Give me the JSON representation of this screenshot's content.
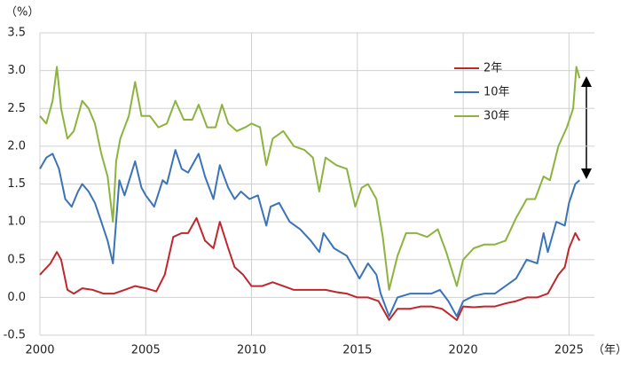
{
  "chart_data": {
    "type": "line",
    "y_unit": "（%）",
    "x_unit": "（年）",
    "xlim": [
      2000,
      2026.2
    ],
    "xticks": [
      2000,
      2005,
      2010,
      2015,
      2020,
      2025
    ],
    "ylim": [
      -0.5,
      3.5
    ],
    "yticks": [
      {
        "value": 3.5,
        "label": "3.5"
      },
      {
        "value": 3,
        "label": "3.0"
      },
      2.5,
      {
        "value": 2,
        "label": "2.0"
      },
      1.5,
      {
        "value": 1,
        "label": "1.0"
      },
      0.5,
      {
        "value": 0,
        "label": "0.0"
      },
      -0.5
    ],
    "grid": true,
    "series": [
      {
        "name": "2年",
        "color": "#c0272d",
        "x": [
          2000.0,
          2000.5,
          2000.8,
          2001.0,
          2001.3,
          2001.6,
          2002.0,
          2002.5,
          2003.0,
          2003.5,
          2004.0,
          2004.5,
          2005.0,
          2005.5,
          2005.9,
          2006.3,
          2006.7,
          2007.0,
          2007.4,
          2007.8,
          2008.2,
          2008.5,
          2008.9,
          2009.2,
          2009.6,
          2010.0,
          2010.5,
          2011.0,
          2011.5,
          2012.0,
          2012.5,
          2013.0,
          2013.5,
          2014.0,
          2014.5,
          2015.0,
          2015.5,
          2016.0,
          2016.5,
          2016.9,
          2017.5,
          2018.0,
          2018.5,
          2019.0,
          2019.7,
          2020.0,
          2020.5,
          2021.0,
          2021.5,
          2022.0,
          2022.5,
          2023.0,
          2023.5,
          2024.0,
          2024.5,
          2024.8,
          2025.0,
          2025.3,
          2025.5
        ],
        "values": [
          0.3,
          0.45,
          0.6,
          0.5,
          0.1,
          0.05,
          0.12,
          0.1,
          0.05,
          0.05,
          0.1,
          0.15,
          0.12,
          0.08,
          0.3,
          0.8,
          0.85,
          0.85,
          1.05,
          0.75,
          0.65,
          1.0,
          0.65,
          0.4,
          0.3,
          0.15,
          0.15,
          0.2,
          0.15,
          0.1,
          0.1,
          0.1,
          0.1,
          0.07,
          0.05,
          0.0,
          0.0,
          -0.05,
          -0.3,
          -0.15,
          -0.15,
          -0.12,
          -0.12,
          -0.15,
          -0.3,
          -0.12,
          -0.13,
          -0.12,
          -0.12,
          -0.08,
          -0.05,
          0.0,
          0.0,
          0.05,
          0.3,
          0.4,
          0.65,
          0.85,
          0.75
        ]
      },
      {
        "name": "10年",
        "color": "#3b73b9",
        "x": [
          2000.0,
          2000.3,
          2000.6,
          2000.9,
          2001.2,
          2001.5,
          2001.8,
          2002.0,
          2002.3,
          2002.6,
          2002.9,
          2003.2,
          2003.45,
          2003.6,
          2003.75,
          2004.0,
          2004.5,
          2004.8,
          2005.0,
          2005.4,
          2005.8,
          2006.0,
          2006.4,
          2006.7,
          2007.0,
          2007.5,
          2007.8,
          2008.2,
          2008.5,
          2008.9,
          2009.2,
          2009.5,
          2009.9,
          2010.3,
          2010.7,
          2010.9,
          2011.3,
          2011.8,
          2012.3,
          2012.8,
          2013.2,
          2013.4,
          2013.9,
          2014.5,
          2014.9,
          2015.1,
          2015.5,
          2015.9,
          2016.1,
          2016.5,
          2016.9,
          2017.5,
          2018.0,
          2018.5,
          2018.9,
          2019.3,
          2019.7,
          2020.0,
          2020.5,
          2021.0,
          2021.5,
          2022.0,
          2022.5,
          2023.0,
          2023.5,
          2023.8,
          2024.0,
          2024.4,
          2024.8,
          2025.0,
          2025.3,
          2025.5
        ],
        "values": [
          1.7,
          1.85,
          1.9,
          1.7,
          1.3,
          1.2,
          1.4,
          1.5,
          1.4,
          1.25,
          1.0,
          0.75,
          0.45,
          1.0,
          1.55,
          1.35,
          1.8,
          1.45,
          1.35,
          1.2,
          1.55,
          1.5,
          1.95,
          1.7,
          1.65,
          1.9,
          1.6,
          1.3,
          1.75,
          1.45,
          1.3,
          1.4,
          1.3,
          1.35,
          0.95,
          1.2,
          1.25,
          1.0,
          0.9,
          0.75,
          0.6,
          0.85,
          0.65,
          0.55,
          0.35,
          0.25,
          0.45,
          0.3,
          0.05,
          -0.25,
          0.0,
          0.05,
          0.05,
          0.05,
          0.1,
          -0.05,
          -0.25,
          -0.05,
          0.02,
          0.05,
          0.05,
          0.15,
          0.25,
          0.5,
          0.45,
          0.85,
          0.6,
          1.0,
          0.95,
          1.25,
          1.5,
          1.55
        ]
      },
      {
        "name": "30年",
        "color": "#8db33f",
        "x": [
          2000.0,
          2000.3,
          2000.6,
          2000.8,
          2001.0,
          2001.3,
          2001.6,
          2002.0,
          2002.3,
          2002.6,
          2002.9,
          2003.2,
          2003.45,
          2003.6,
          2003.8,
          2004.2,
          2004.5,
          2004.8,
          2005.2,
          2005.6,
          2006.0,
          2006.4,
          2006.8,
          2007.2,
          2007.5,
          2007.9,
          2008.3,
          2008.6,
          2008.9,
          2009.3,
          2009.7,
          2010.0,
          2010.4,
          2010.7,
          2011.0,
          2011.5,
          2012.0,
          2012.5,
          2012.9,
          2013.2,
          2013.5,
          2014.0,
          2014.5,
          2014.9,
          2015.2,
          2015.5,
          2015.9,
          2016.2,
          2016.5,
          2016.9,
          2017.3,
          2017.8,
          2018.3,
          2018.8,
          2019.2,
          2019.7,
          2020.0,
          2020.5,
          2021.0,
          2021.5,
          2022.0,
          2022.5,
          2023.0,
          2023.4,
          2023.8,
          2024.1,
          2024.5,
          2024.9,
          2025.2,
          2025.35,
          2025.5
        ],
        "values": [
          2.4,
          2.3,
          2.6,
          3.05,
          2.5,
          2.1,
          2.2,
          2.6,
          2.5,
          2.3,
          1.9,
          1.6,
          1.0,
          1.8,
          2.1,
          2.4,
          2.85,
          2.4,
          2.4,
          2.25,
          2.3,
          2.6,
          2.35,
          2.35,
          2.55,
          2.25,
          2.25,
          2.55,
          2.3,
          2.2,
          2.25,
          2.3,
          2.25,
          1.75,
          2.1,
          2.2,
          2.0,
          1.95,
          1.85,
          1.4,
          1.85,
          1.75,
          1.7,
          1.2,
          1.45,
          1.5,
          1.3,
          0.8,
          0.1,
          0.55,
          0.85,
          0.85,
          0.8,
          0.9,
          0.6,
          0.15,
          0.5,
          0.65,
          0.7,
          0.7,
          0.75,
          1.05,
          1.3,
          1.3,
          1.6,
          1.55,
          2.0,
          2.25,
          2.5,
          3.05,
          2.9
        ]
      }
    ]
  }
}
